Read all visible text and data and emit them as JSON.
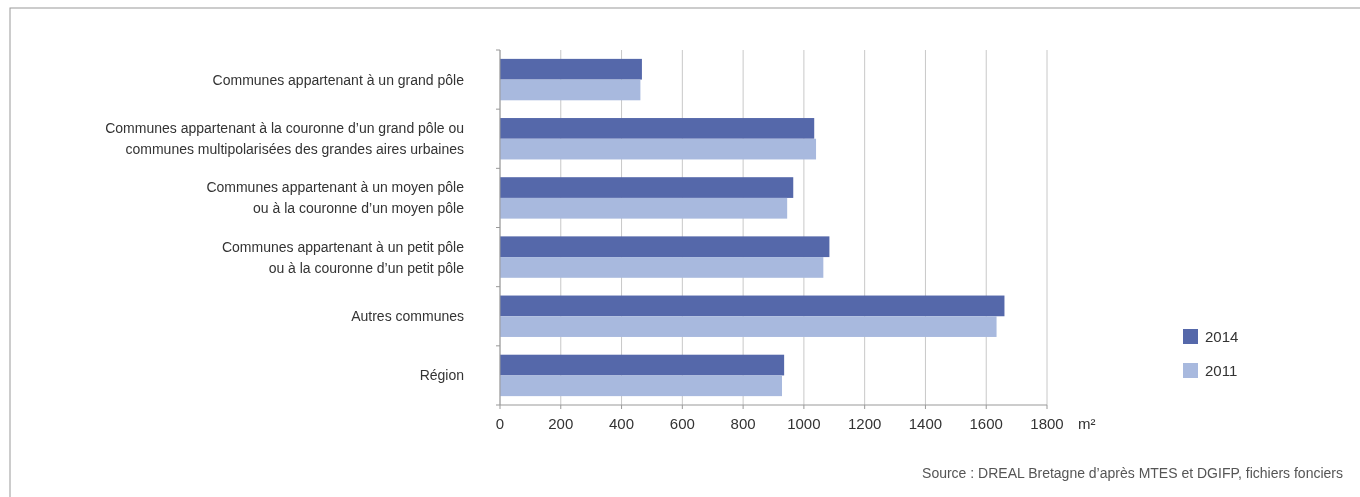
{
  "chart_data": {
    "type": "bar",
    "orientation": "horizontal",
    "categories": [
      "Communes appartenant à un grand pôle",
      "Communes appartenant à la couronne d’un grand pôle ou\ncommunes multipolarisées des grandes aires urbaines",
      "Communes appartenant à un moyen pôle\nou à la couronne d’un moyen pôle",
      "Communes appartenant à un petit pôle\nou à la couronne d’un petit pôle",
      "Autres communes",
      "Région"
    ],
    "series": [
      {
        "name": "2014",
        "color": "#5568aa",
        "values": [
          467,
          1034,
          965,
          1084,
          1660,
          935
        ]
      },
      {
        "name": "2011",
        "color": "#a8b9de",
        "values": [
          462,
          1040,
          945,
          1064,
          1634,
          928
        ]
      }
    ],
    "xlim": [
      0,
      1800
    ],
    "xticks": [
      0,
      200,
      400,
      600,
      800,
      1000,
      1200,
      1400,
      1600,
      1800
    ],
    "xlabel": "m²",
    "grid": "x",
    "legend": "right",
    "annotations": [
      "Source : DREAL Bretagne d’après MTES et DGIFP, fichiers fonciers"
    ]
  }
}
